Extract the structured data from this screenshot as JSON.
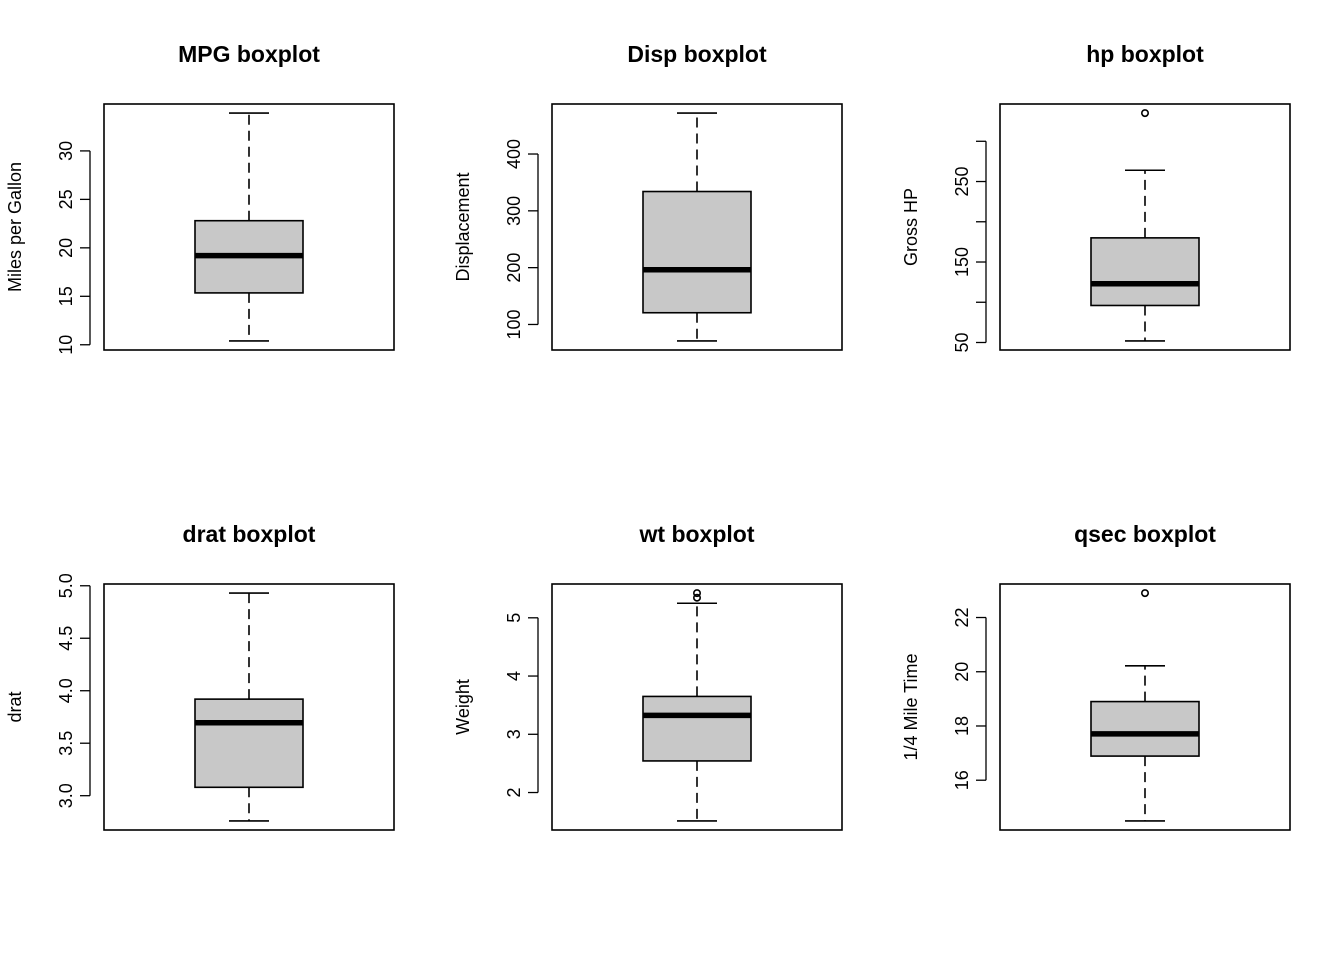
{
  "chart_data": [
    {
      "type": "box",
      "title": "MPG boxplot",
      "ylabel": "Miles per Gallon",
      "ylim": [
        10.4,
        33.9
      ],
      "yticks": [
        10,
        15,
        20,
        25,
        30
      ],
      "ytick_labels": [
        "10",
        "15",
        "20",
        "25",
        "30"
      ],
      "stats": {
        "min": 10.4,
        "q1": 15.35,
        "median": 19.2,
        "q3": 22.8,
        "max": 33.9
      },
      "outliers": []
    },
    {
      "type": "box",
      "title": "Disp boxplot",
      "ylabel": "Displacement",
      "ylim": [
        71.1,
        472
      ],
      "yticks": [
        100,
        200,
        300,
        400
      ],
      "ytick_labels": [
        "100",
        "200",
        "300",
        "400"
      ],
      "stats": {
        "min": 71.1,
        "q1": 120.65,
        "median": 196.3,
        "q3": 334,
        "max": 472
      },
      "outliers": []
    },
    {
      "type": "box",
      "title": "hp boxplot",
      "ylabel": "Gross HP",
      "ylim": [
        52,
        335
      ],
      "yticks": [
        50,
        100,
        150,
        200,
        250,
        300
      ],
      "ytick_labels": [
        "50",
        "",
        "150",
        "",
        "250",
        ""
      ],
      "stats": {
        "min": 52,
        "q1": 96,
        "median": 123,
        "q3": 180,
        "max": 264
      },
      "outliers": [
        335
      ]
    },
    {
      "type": "box",
      "title": "drat boxplot",
      "ylabel": "drat",
      "ylim": [
        2.76,
        4.93
      ],
      "yticks": [
        3.0,
        3.5,
        4.0,
        4.5,
        5.0
      ],
      "ytick_labels": [
        "3.0",
        "3.5",
        "4.0",
        "4.5",
        "5.0"
      ],
      "stats": {
        "min": 2.76,
        "q1": 3.08,
        "median": 3.695,
        "q3": 3.92,
        "max": 4.93
      },
      "outliers": []
    },
    {
      "type": "box",
      "title": "wt boxplot",
      "ylabel": "Weight",
      "ylim": [
        1.513,
        5.424
      ],
      "yticks": [
        2,
        3,
        4,
        5
      ],
      "ytick_labels": [
        "2",
        "3",
        "4",
        "5"
      ],
      "stats": {
        "min": 1.513,
        "q1": 2.5425,
        "median": 3.325,
        "q3": 3.65,
        "max": 5.25
      },
      "outliers": [
        5.345,
        5.424
      ]
    },
    {
      "type": "box",
      "title": "qsec boxplot",
      "ylabel": "1/4 Mile Time",
      "ylim": [
        14.5,
        22.9
      ],
      "yticks": [
        16,
        18,
        20,
        22
      ],
      "ytick_labels": [
        "16",
        "18",
        "20",
        "22"
      ],
      "stats": {
        "min": 14.5,
        "q1": 16.89,
        "median": 17.71,
        "q3": 18.9,
        "max": 20.22
      },
      "outliers": [
        22.9
      ]
    }
  ]
}
